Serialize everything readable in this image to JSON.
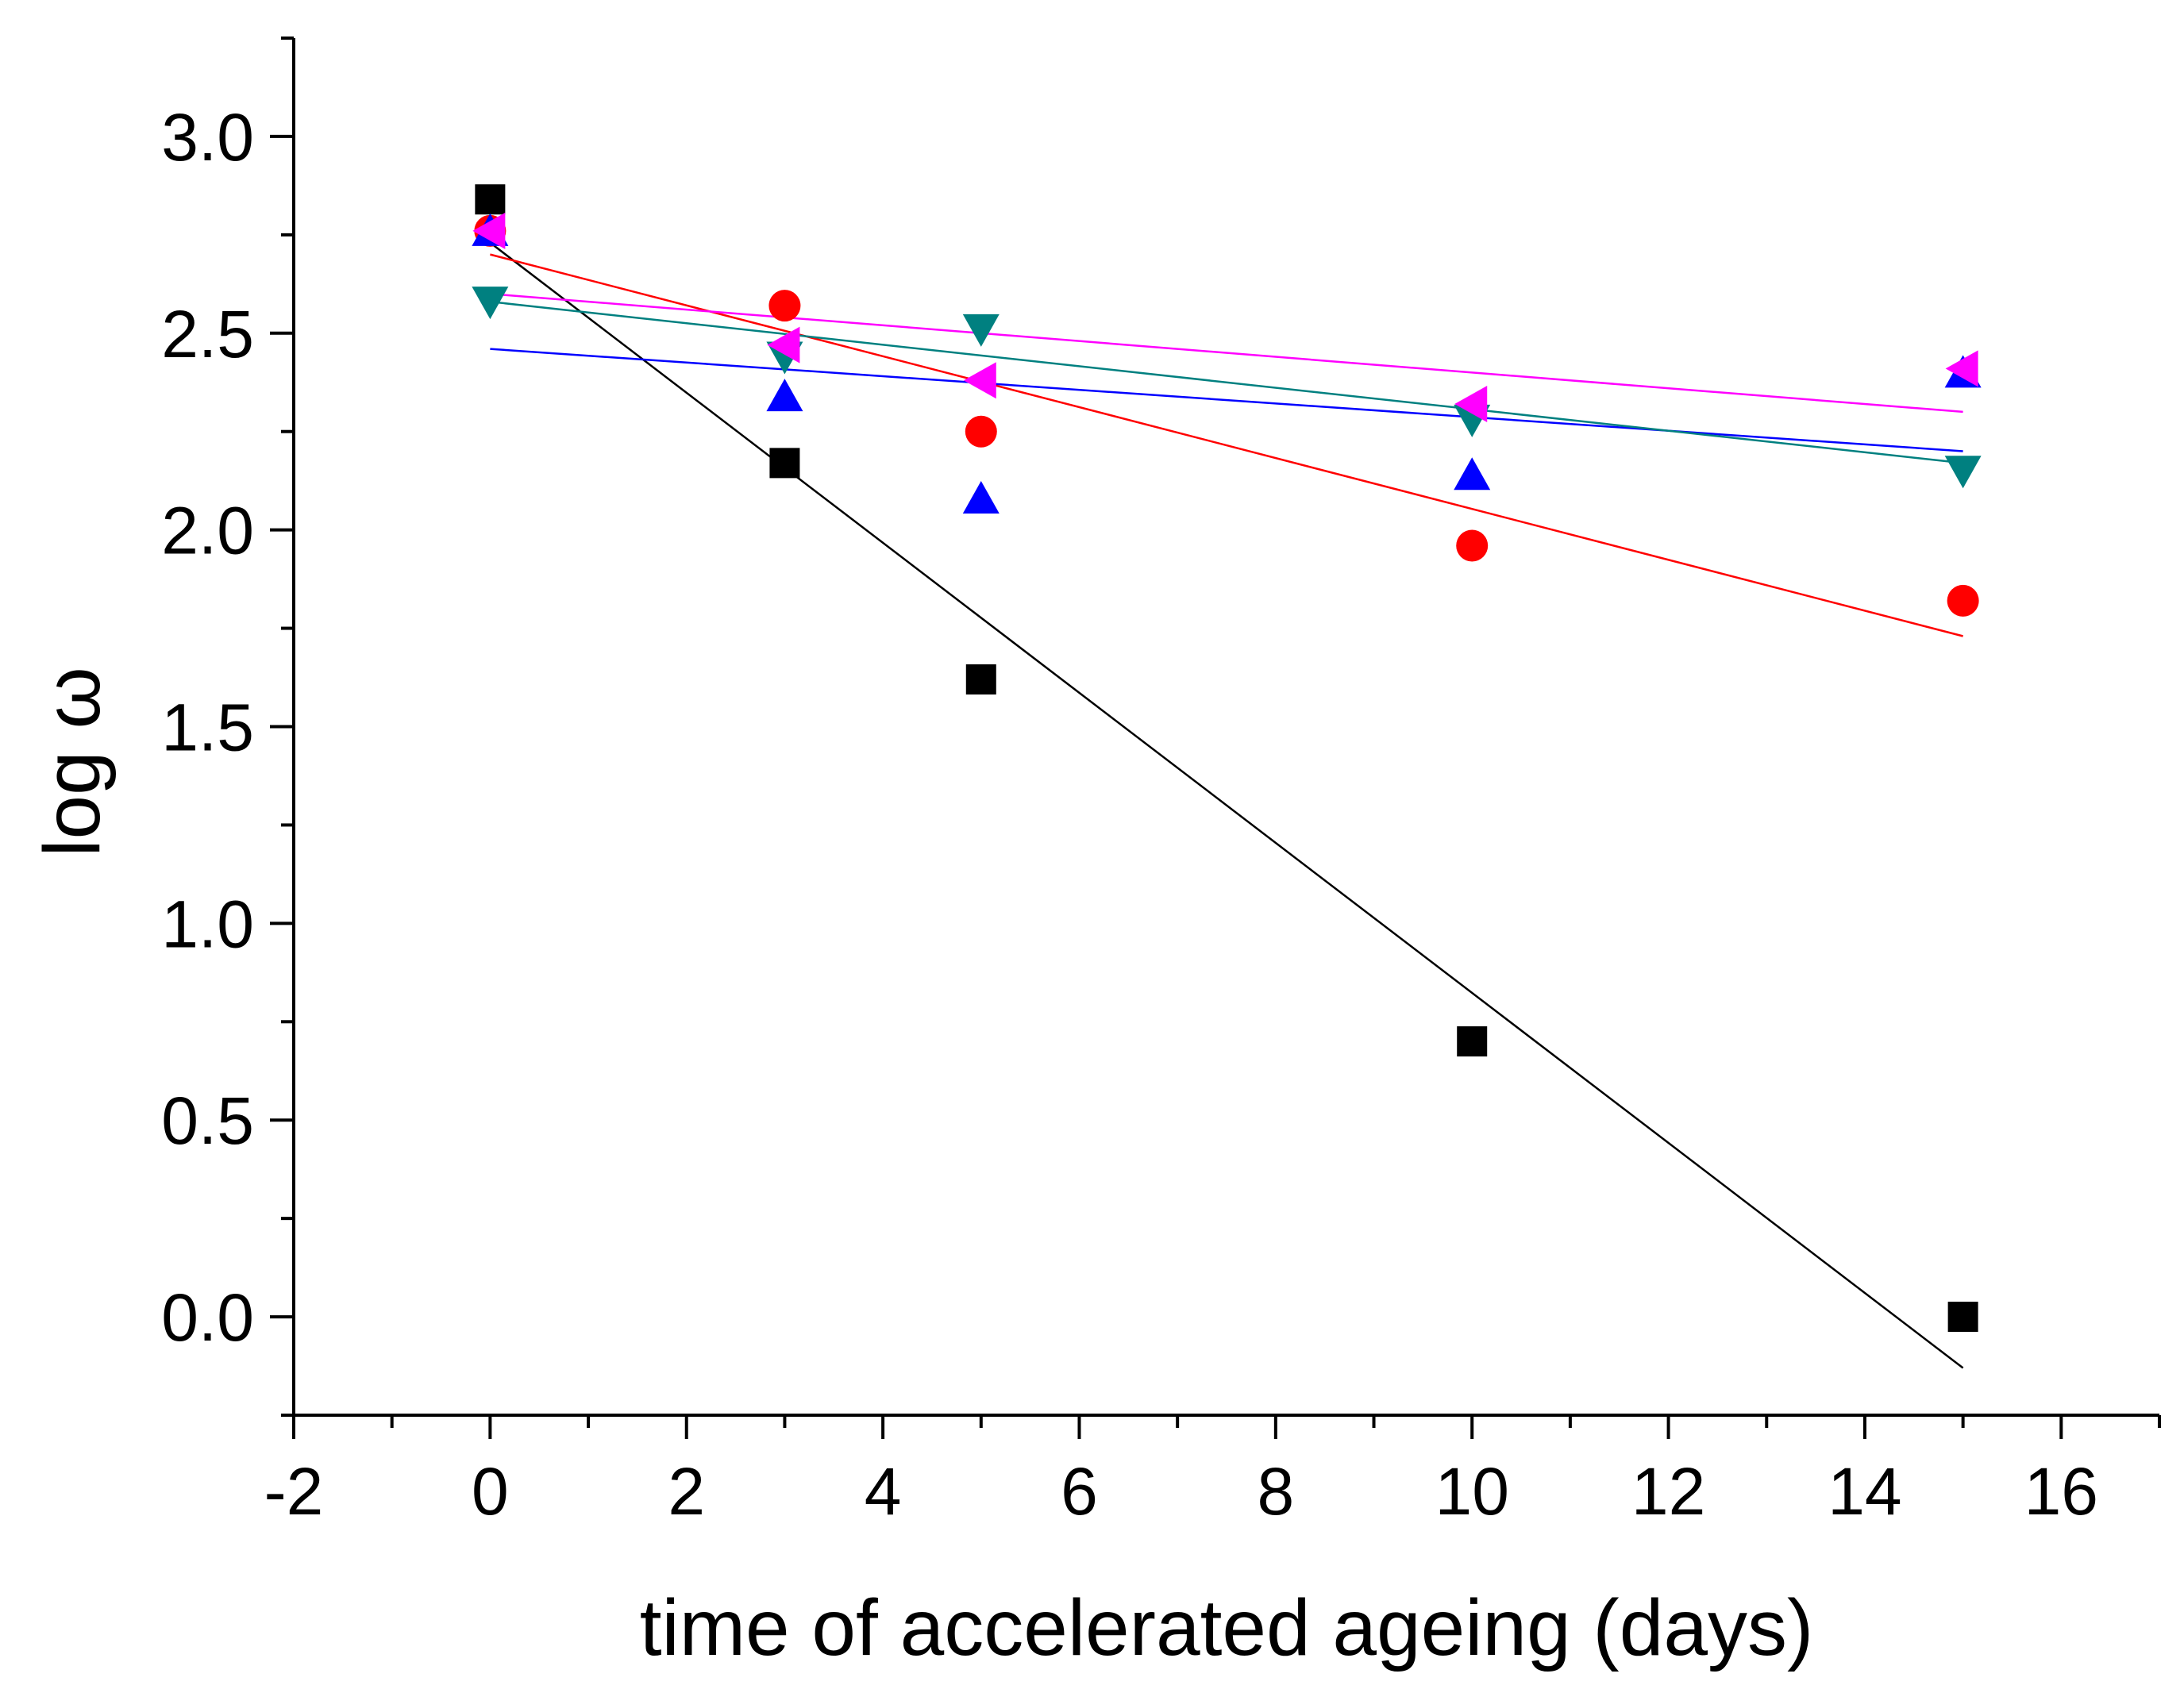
{
  "chart_data": {
    "type": "scatter",
    "title": "",
    "xlabel": "time of accelerated ageing (days)",
    "ylabel": "log ω",
    "xlim": [
      -2,
      17
    ],
    "ylim": [
      -0.25,
      3.25
    ],
    "x_ticks": [
      -2,
      0,
      2,
      4,
      6,
      8,
      10,
      12,
      14,
      16
    ],
    "x_tick_labels": [
      "-2",
      "0",
      "2",
      "4",
      "6",
      "8",
      "10",
      "12",
      "14",
      "16"
    ],
    "y_ticks": [
      0.0,
      0.5,
      1.0,
      1.5,
      2.0,
      2.5,
      3.0
    ],
    "y_tick_labels": [
      "0.0",
      "0.5",
      "1.0",
      "1.5",
      "2.0",
      "2.5",
      "3.0"
    ],
    "grid": false,
    "legend": "none",
    "series": [
      {
        "name": "black squares",
        "marker": "square",
        "color": "#000000",
        "x": [
          0,
          3,
          5,
          10,
          15
        ],
        "y": [
          2.84,
          2.17,
          1.62,
          0.7,
          0.0
        ],
        "fit": {
          "x": [
            0,
            15
          ],
          "y": [
            2.73,
            -0.13
          ]
        }
      },
      {
        "name": "red circles",
        "marker": "circle",
        "color": "#ff0000",
        "x": [
          0,
          3,
          5,
          10,
          15
        ],
        "y": [
          2.76,
          2.57,
          2.25,
          1.96,
          1.82
        ],
        "fit": {
          "x": [
            0,
            15
          ],
          "y": [
            2.7,
            1.73
          ]
        }
      },
      {
        "name": "blue triangles up",
        "marker": "triangle-up",
        "color": "#0000ff",
        "x": [
          0,
          3,
          5,
          10,
          15
        ],
        "y": [
          2.76,
          2.34,
          2.08,
          2.14,
          2.4
        ],
        "fit": {
          "x": [
            0,
            15
          ],
          "y": [
            2.46,
            2.2
          ]
        }
      },
      {
        "name": "teal triangles down",
        "marker": "triangle-down",
        "color": "#008080",
        "x": [
          0,
          3,
          5,
          10,
          15
        ],
        "y": [
          2.58,
          2.44,
          2.51,
          2.28,
          2.15
        ],
        "fit": {
          "x": [
            0,
            15
          ],
          "y": [
            2.58,
            2.17
          ]
        }
      },
      {
        "name": "magenta triangles left",
        "marker": "triangle-left",
        "color": "#ff00ff",
        "x": [
          0,
          3,
          5,
          10,
          15
        ],
        "y": [
          2.76,
          2.47,
          2.38,
          2.32,
          2.41
        ],
        "fit": {
          "x": [
            0,
            15
          ],
          "y": [
            2.6,
            2.3
          ]
        }
      }
    ]
  }
}
